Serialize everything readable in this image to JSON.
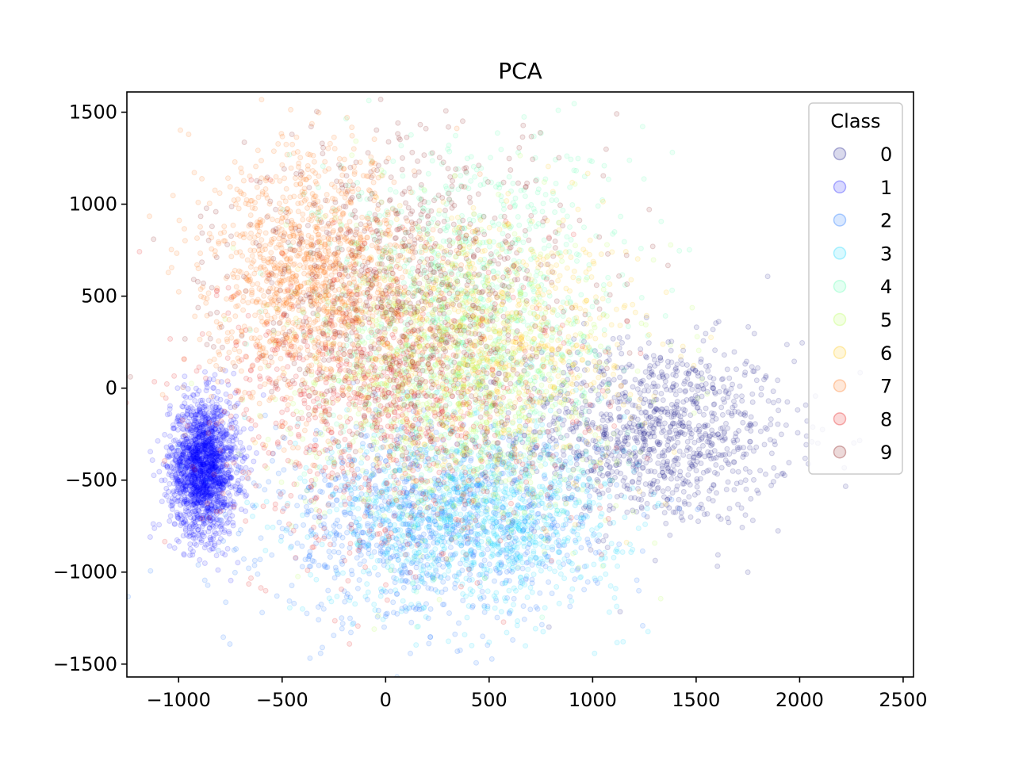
{
  "chart_data": {
    "type": "scatter",
    "title": "PCA",
    "xlabel": "",
    "ylabel": "",
    "xlim": [
      -1250,
      2550
    ],
    "ylim": [
      -1570,
      1610
    ],
    "x_ticks": [
      -1000,
      -500,
      0,
      500,
      1000,
      1500,
      2000,
      2500
    ],
    "x_tick_labels": [
      "−1000",
      "−500",
      "0",
      "500",
      "1000",
      "1500",
      "2000",
      "2500"
    ],
    "y_ticks": [
      -1500,
      -1000,
      -500,
      0,
      500,
      1000,
      1500
    ],
    "y_tick_labels": [
      "−1500",
      "−1000",
      "−500",
      "0",
      "500",
      "1000",
      "1500"
    ],
    "grid": false,
    "legend": {
      "title": "Class",
      "placement": "top-right"
    },
    "marker_alpha": 0.1,
    "series": [
      {
        "name": "0",
        "color": "#00007f",
        "center": [
          1300,
          -250
        ],
        "spread": [
          330,
          250
        ],
        "count": 1100
      },
      {
        "name": "1",
        "color": "#0000ff",
        "center": [
          -880,
          -430
        ],
        "spread": [
          80,
          180
        ],
        "count": 1800
      },
      {
        "name": "2",
        "color": "#0063ff",
        "center": [
          200,
          -750
        ],
        "spread": [
          400,
          260
        ],
        "count": 1100
      },
      {
        "name": "3",
        "color": "#00d4ff",
        "center": [
          450,
          -700
        ],
        "spread": [
          350,
          250
        ],
        "count": 1100
      },
      {
        "name": "4",
        "color": "#4dffaa",
        "center": [
          400,
          400
        ],
        "spread": [
          360,
          480
        ],
        "count": 1100
      },
      {
        "name": "5",
        "color": "#b1ff46",
        "center": [
          300,
          0
        ],
        "spread": [
          380,
          400
        ],
        "count": 900
      },
      {
        "name": "6",
        "color": "#ffc400",
        "center": [
          500,
          250
        ],
        "spread": [
          350,
          350
        ],
        "count": 900
      },
      {
        "name": "7",
        "color": "#ff6800",
        "center": [
          -350,
          600
        ],
        "spread": [
          250,
          330
        ],
        "count": 1300
      },
      {
        "name": "8",
        "color": "#e50000",
        "center": [
          0,
          -100
        ],
        "spread": [
          420,
          420
        ],
        "count": 900
      },
      {
        "name": "9",
        "color": "#7f0000",
        "center": [
          100,
          500
        ],
        "spread": [
          420,
          420
        ],
        "count": 900
      }
    ]
  }
}
